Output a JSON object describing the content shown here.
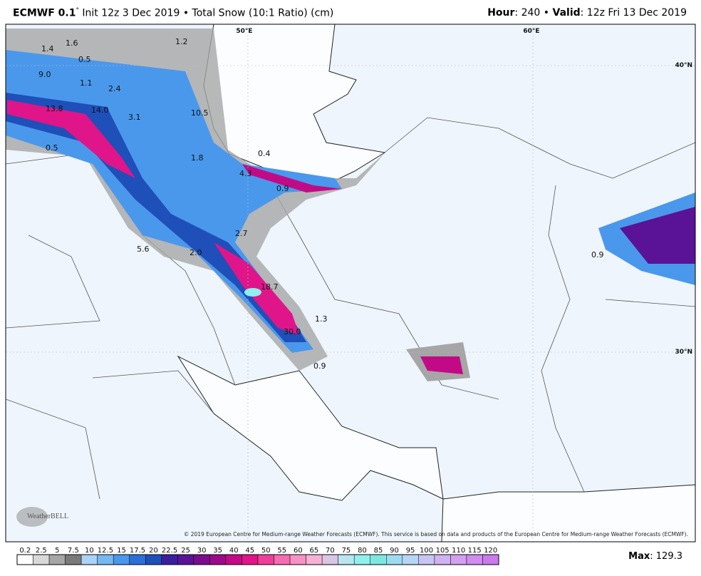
{
  "header": {
    "model": "ECMWF 0.1",
    "degree": "°",
    "description": "Init 12z 3 Dec 2019 • Total Snow (10:1 Ratio) (cm)",
    "hour_label": "Hour",
    "hour_value": ": 240 •",
    "valid_label": "Valid",
    "valid_value": ": 12z Fri 13 Dec 2019"
  },
  "map": {
    "grid_labels": [
      "50°E",
      "60°E",
      "40°N",
      "30°N"
    ],
    "snow_labels": [
      "1.4",
      "1.6",
      "1.2",
      "0.5",
      "9.0",
      "1.1",
      "2.4",
      "13.8",
      "14.0",
      "3.1",
      "10.5",
      "0.5",
      "1.8",
      "0.4",
      "4.3",
      "0.9",
      "2.7",
      "5.6",
      "2.0",
      "18.7",
      "1.3",
      "30.0",
      "0.9",
      "0.9"
    ],
    "copyright": "© 2019 European Centre for Medium-range Weather Forecasts (ECMWF). This service is based on data and products of the European Centre for Medium-range Weather Forecasts (ECMWF).",
    "logo": "WeatherBELL"
  },
  "legend": {
    "ticks": [
      "0.2",
      "2.5",
      "5",
      "7.5",
      "10",
      "12.5",
      "15",
      "17.5",
      "20",
      "22.5",
      "25",
      "30",
      "35",
      "40",
      "45",
      "50",
      "55",
      "60",
      "65",
      "70",
      "75",
      "80",
      "85",
      "90",
      "95",
      "100",
      "105",
      "110",
      "115",
      "120"
    ],
    "colors": [
      "#ffffff",
      "#d9d9d9",
      "#a6a6a6",
      "#7a7a7a",
      "#a9d4f7",
      "#75b8f2",
      "#4a98ec",
      "#2b6fd8",
      "#1f4fb8",
      "#3b1f9e",
      "#5a1396",
      "#7a0c8f",
      "#9c0a8a",
      "#c30a86",
      "#e0158a",
      "#ee3f9a",
      "#f56db0",
      "#f792c4",
      "#f5b2d3",
      "#d9c6e6",
      "#b9e6f0",
      "#8ff0ee",
      "#7de8e0",
      "#9ddcf0",
      "#b7d6f5",
      "#c9c5f3",
      "#cfb2f2",
      "#d3a0f0",
      "#d08cef",
      "#c97bec"
    ],
    "max_label": "Max",
    "max_value": ": 129.3"
  }
}
